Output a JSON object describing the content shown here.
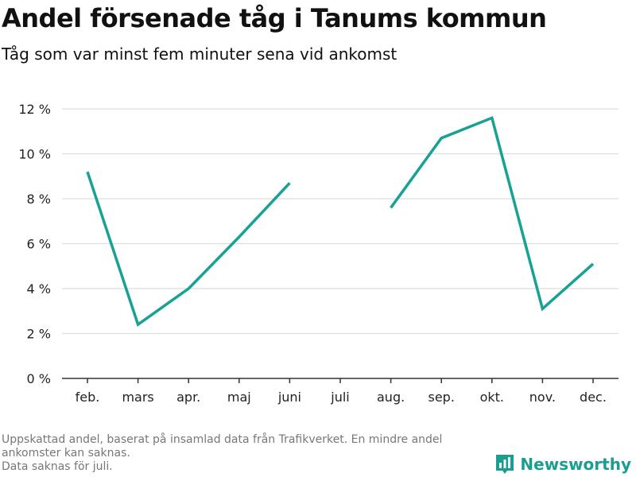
{
  "header": {
    "title": "Andel försenade tåg i Tanums kommun",
    "subtitle": "Tåg som var minst fem minuter sena vid ankomst"
  },
  "footer": {
    "notes": [
      "Uppskattad andel, baserat på insamlad data från Trafikverket. En mindre andel",
      "ankomster kan saknas.",
      "Data saknas för juli."
    ],
    "brand": "Newsworthy",
    "brand_icon": "bar-chart-logo-icon"
  },
  "colors": {
    "line": "#17a294",
    "grid": "#dddddd",
    "axis": "#333333",
    "brand": "#1a9e8f"
  },
  "chart_data": {
    "type": "line",
    "title": "Andel försenade tåg i Tanums kommun",
    "subtitle": "Tåg som var minst fem minuter sena vid ankomst",
    "categories": [
      "feb.",
      "mars",
      "apr.",
      "maj",
      "juni",
      "juli",
      "aug.",
      "sep.",
      "okt.",
      "nov.",
      "dec."
    ],
    "series": [
      {
        "values": [
          9.2,
          2.4,
          4.0,
          6.3,
          8.7,
          null,
          7.6,
          10.7,
          11.6,
          3.1,
          5.1
        ]
      }
    ],
    "ylim": [
      0,
      12
    ],
    "yticks": [
      0,
      2,
      4,
      6,
      8,
      10,
      12
    ],
    "ytick_labels": [
      "0 %",
      "2 %",
      "4 %",
      "6 %",
      "8 %",
      "10 %",
      "12 %"
    ],
    "grid": "horizontal",
    "legend": "none"
  }
}
